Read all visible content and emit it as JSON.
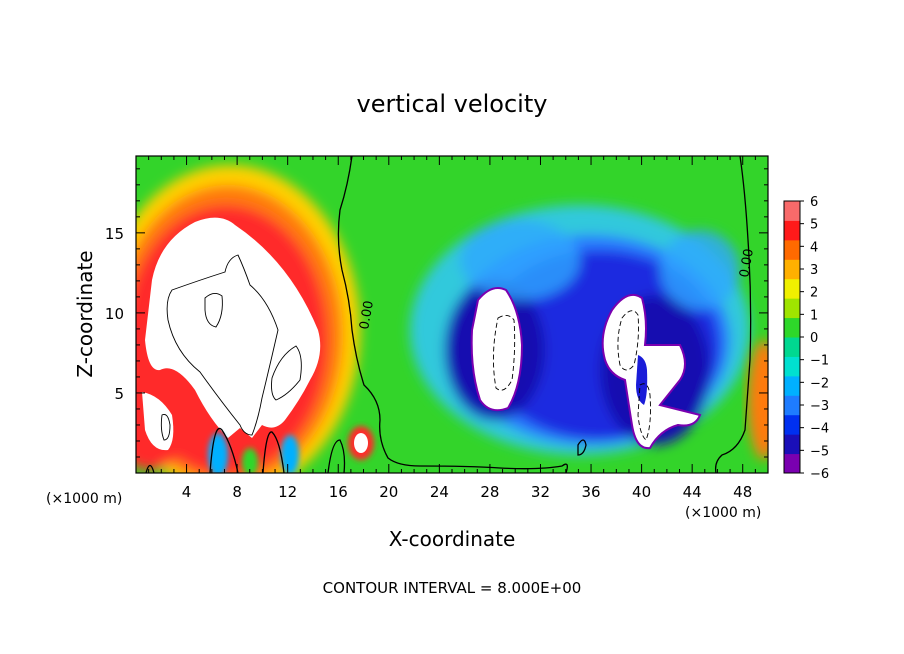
{
  "chart_data": {
    "type": "heatmap",
    "title": "vertical velocity",
    "xlabel": "X-coordinate",
    "ylabel": "Z-coordinate",
    "x_unit_left": "(×1000 m)",
    "x_unit_right": "(×1000 m)",
    "xlim": [
      0,
      50
    ],
    "ylim": [
      0,
      19.8
    ],
    "x_ticks": [
      4,
      8,
      12,
      16,
      20,
      24,
      28,
      32,
      36,
      40,
      44,
      48
    ],
    "y_ticks": [
      5,
      10,
      15
    ],
    "colorbar": {
      "ticks": [
        6,
        5,
        4,
        3,
        2,
        1,
        0,
        -1,
        -2,
        -3,
        -4,
        -5,
        -6
      ],
      "range": [
        -6,
        6
      ],
      "colors": [
        "#7a00b0",
        "#1a0fb8",
        "#0030f0",
        "#1e7cff",
        "#00b0ff",
        "#00e0d0",
        "#00d890",
        "#2ed82a",
        "#9fe400",
        "#f0f000",
        "#ffb000",
        "#ff6a00",
        "#ff1a1a",
        "#f86a6a"
      ]
    },
    "contour_labels": [
      "0.00",
      "0.00"
    ],
    "footer": "CONTOUR INTERVAL = 8.000E+00",
    "grid": false
  }
}
